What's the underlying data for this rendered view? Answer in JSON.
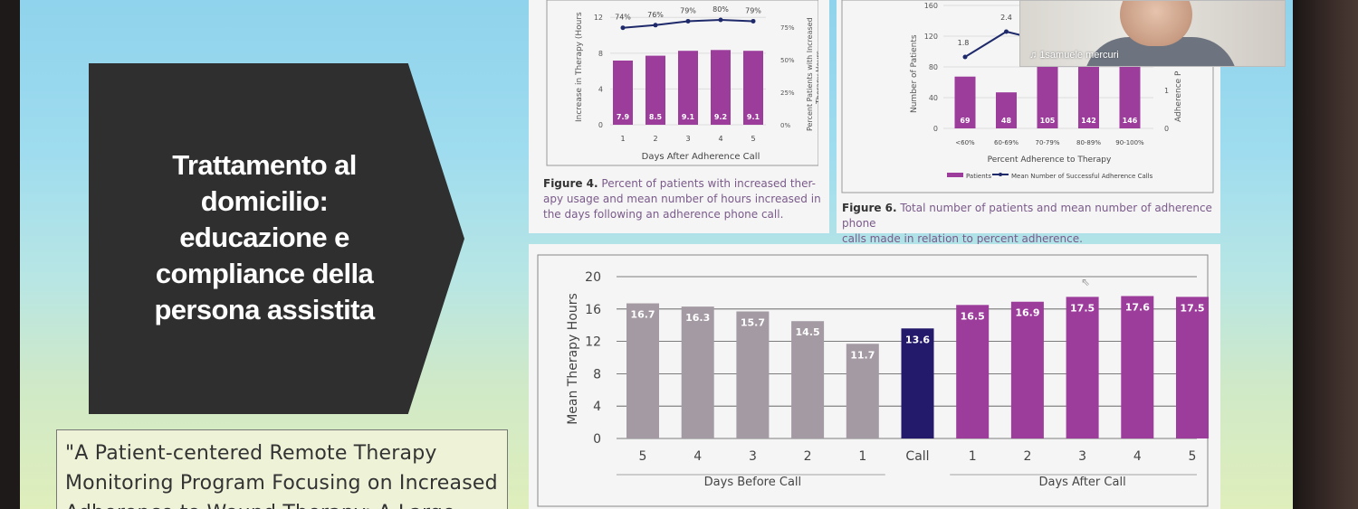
{
  "slide": {
    "title": "Trattamento al domicilio: educazione e compliance della persona assistita",
    "title_lines": [
      "Trattamento al",
      "domicilio:",
      "educazione e",
      "compliance della",
      "persona assistita"
    ],
    "quote_lines": [
      "\"A Patient-centered Remote Therapy",
      "Monitoring Program Focusing on Increased",
      "Adherence to Wound Therapy: A Large"
    ]
  },
  "video_call": {
    "participant_name": "1samuele mercuri",
    "icon": "microphone-icon"
  },
  "figure4": {
    "caption_label": "Figure 4.",
    "caption_lines": [
      "Percent of patients with increased ther-",
      "apy usage and mean number of hours increased in",
      "the days following an adherence phone call."
    ],
    "chart_data": {
      "type": "bar",
      "categories": [
        "1",
        "2",
        "3",
        "4",
        "5"
      ],
      "values": [
        7.9,
        8.5,
        9.1,
        9.2,
        9.1
      ],
      "line_values": [
        74,
        76,
        79,
        80,
        79
      ],
      "line_labels": [
        "74%",
        "76%",
        "79%",
        "80%",
        "79%"
      ],
      "xlabel": "Days After Adherence Call",
      "ylabel": "Increase in Therapy (Hours",
      "y2label_lines": [
        "Percent Patients with Increased",
        "Therapy Hours"
      ],
      "y_ticks": [
        "0",
        "4",
        "8",
        "12"
      ],
      "y2_ticks": [
        "0%",
        "25%",
        "50%",
        "75%"
      ],
      "colors": {
        "bar": "#9c3d9c",
        "line": "#1f2a6b"
      }
    }
  },
  "figure6": {
    "caption_label": "Figure 6.",
    "caption_lines": [
      "Total number of patients and mean number of adherence phone",
      "calls made in relation to percent adherence."
    ],
    "chart_data": {
      "type": "bar",
      "categories": [
        "<60%",
        "60-69%",
        "70-79%",
        "80-89%",
        "90-100%"
      ],
      "values": [
        69,
        48,
        105,
        142,
        146
      ],
      "line_values": [
        1.8,
        2.4
      ],
      "line_labels": [
        "1.8",
        "2.4"
      ],
      "xlabel": "Percent Adherence to Therapy",
      "ylabel": "Number of Patients",
      "y2label": "Adherence P",
      "y_ticks": [
        "0",
        "40",
        "80",
        "120",
        "160"
      ],
      "y2_ticks": [
        "0",
        "1"
      ],
      "legend": [
        "Patients",
        "Mean Number of Successful Adherence Calls"
      ],
      "colors": {
        "bar": "#9c3d9c",
        "line": "#1f2a6b"
      }
    }
  },
  "figure_main": {
    "chart_data": {
      "type": "bar",
      "categories": [
        "5",
        "4",
        "3",
        "2",
        "1",
        "Call",
        "1",
        "2",
        "3",
        "4",
        "5"
      ],
      "values": [
        16.7,
        16.3,
        15.7,
        14.5,
        11.7,
        13.6,
        16.5,
        16.9,
        17.5,
        17.6,
        17.5
      ],
      "ylabel": "Mean Therapy Hours",
      "ylim": [
        0,
        20
      ],
      "y_ticks": [
        "0",
        "4",
        "8",
        "12",
        "16",
        "20"
      ],
      "group_labels": [
        "Days Before Call",
        "Days After Call"
      ],
      "colors": {
        "before": "#a49aa3",
        "call": "#231a6b",
        "after": "#9c3d9c"
      },
      "grid": true
    }
  }
}
